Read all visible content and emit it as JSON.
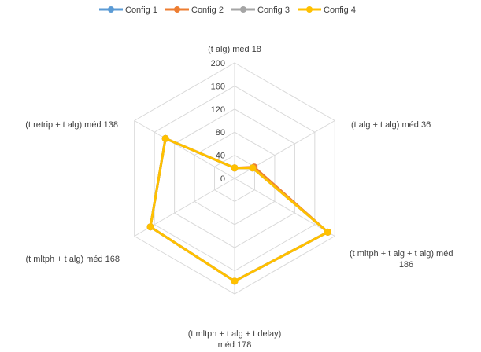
{
  "chart_data": {
    "type": "radar",
    "categories": [
      [
        "(t alg) méd 18"
      ],
      [
        "(t alg + t alg) méd 36"
      ],
      [
        "(t mltph + t alg + t alg) méd",
        "186"
      ],
      [
        "(t mltph + t alg + t delay)",
        "méd 178"
      ],
      [
        "(t mltph + t alg) méd 168"
      ],
      [
        "(t retrip + t alg) méd 138"
      ]
    ],
    "rlim": [
      0,
      200
    ],
    "ticks": [
      0,
      40,
      80,
      120,
      160,
      200
    ],
    "grid": true,
    "legend": "top",
    "series": [
      {
        "name": "Config 1",
        "color": "#5B9BD5",
        "values": [
          18,
          36,
          186,
          178,
          168,
          138
        ]
      },
      {
        "name": "Config 2",
        "color": "#ED7D31",
        "values": [
          18,
          39,
          186,
          178,
          168,
          138
        ]
      },
      {
        "name": "Config 3",
        "color": "#A5A5A5",
        "values": [
          18,
          36,
          186,
          178,
          168,
          138
        ]
      },
      {
        "name": "Config 4",
        "color": "#FFC000",
        "values": [
          18,
          36,
          186,
          178,
          168,
          138
        ]
      }
    ]
  }
}
